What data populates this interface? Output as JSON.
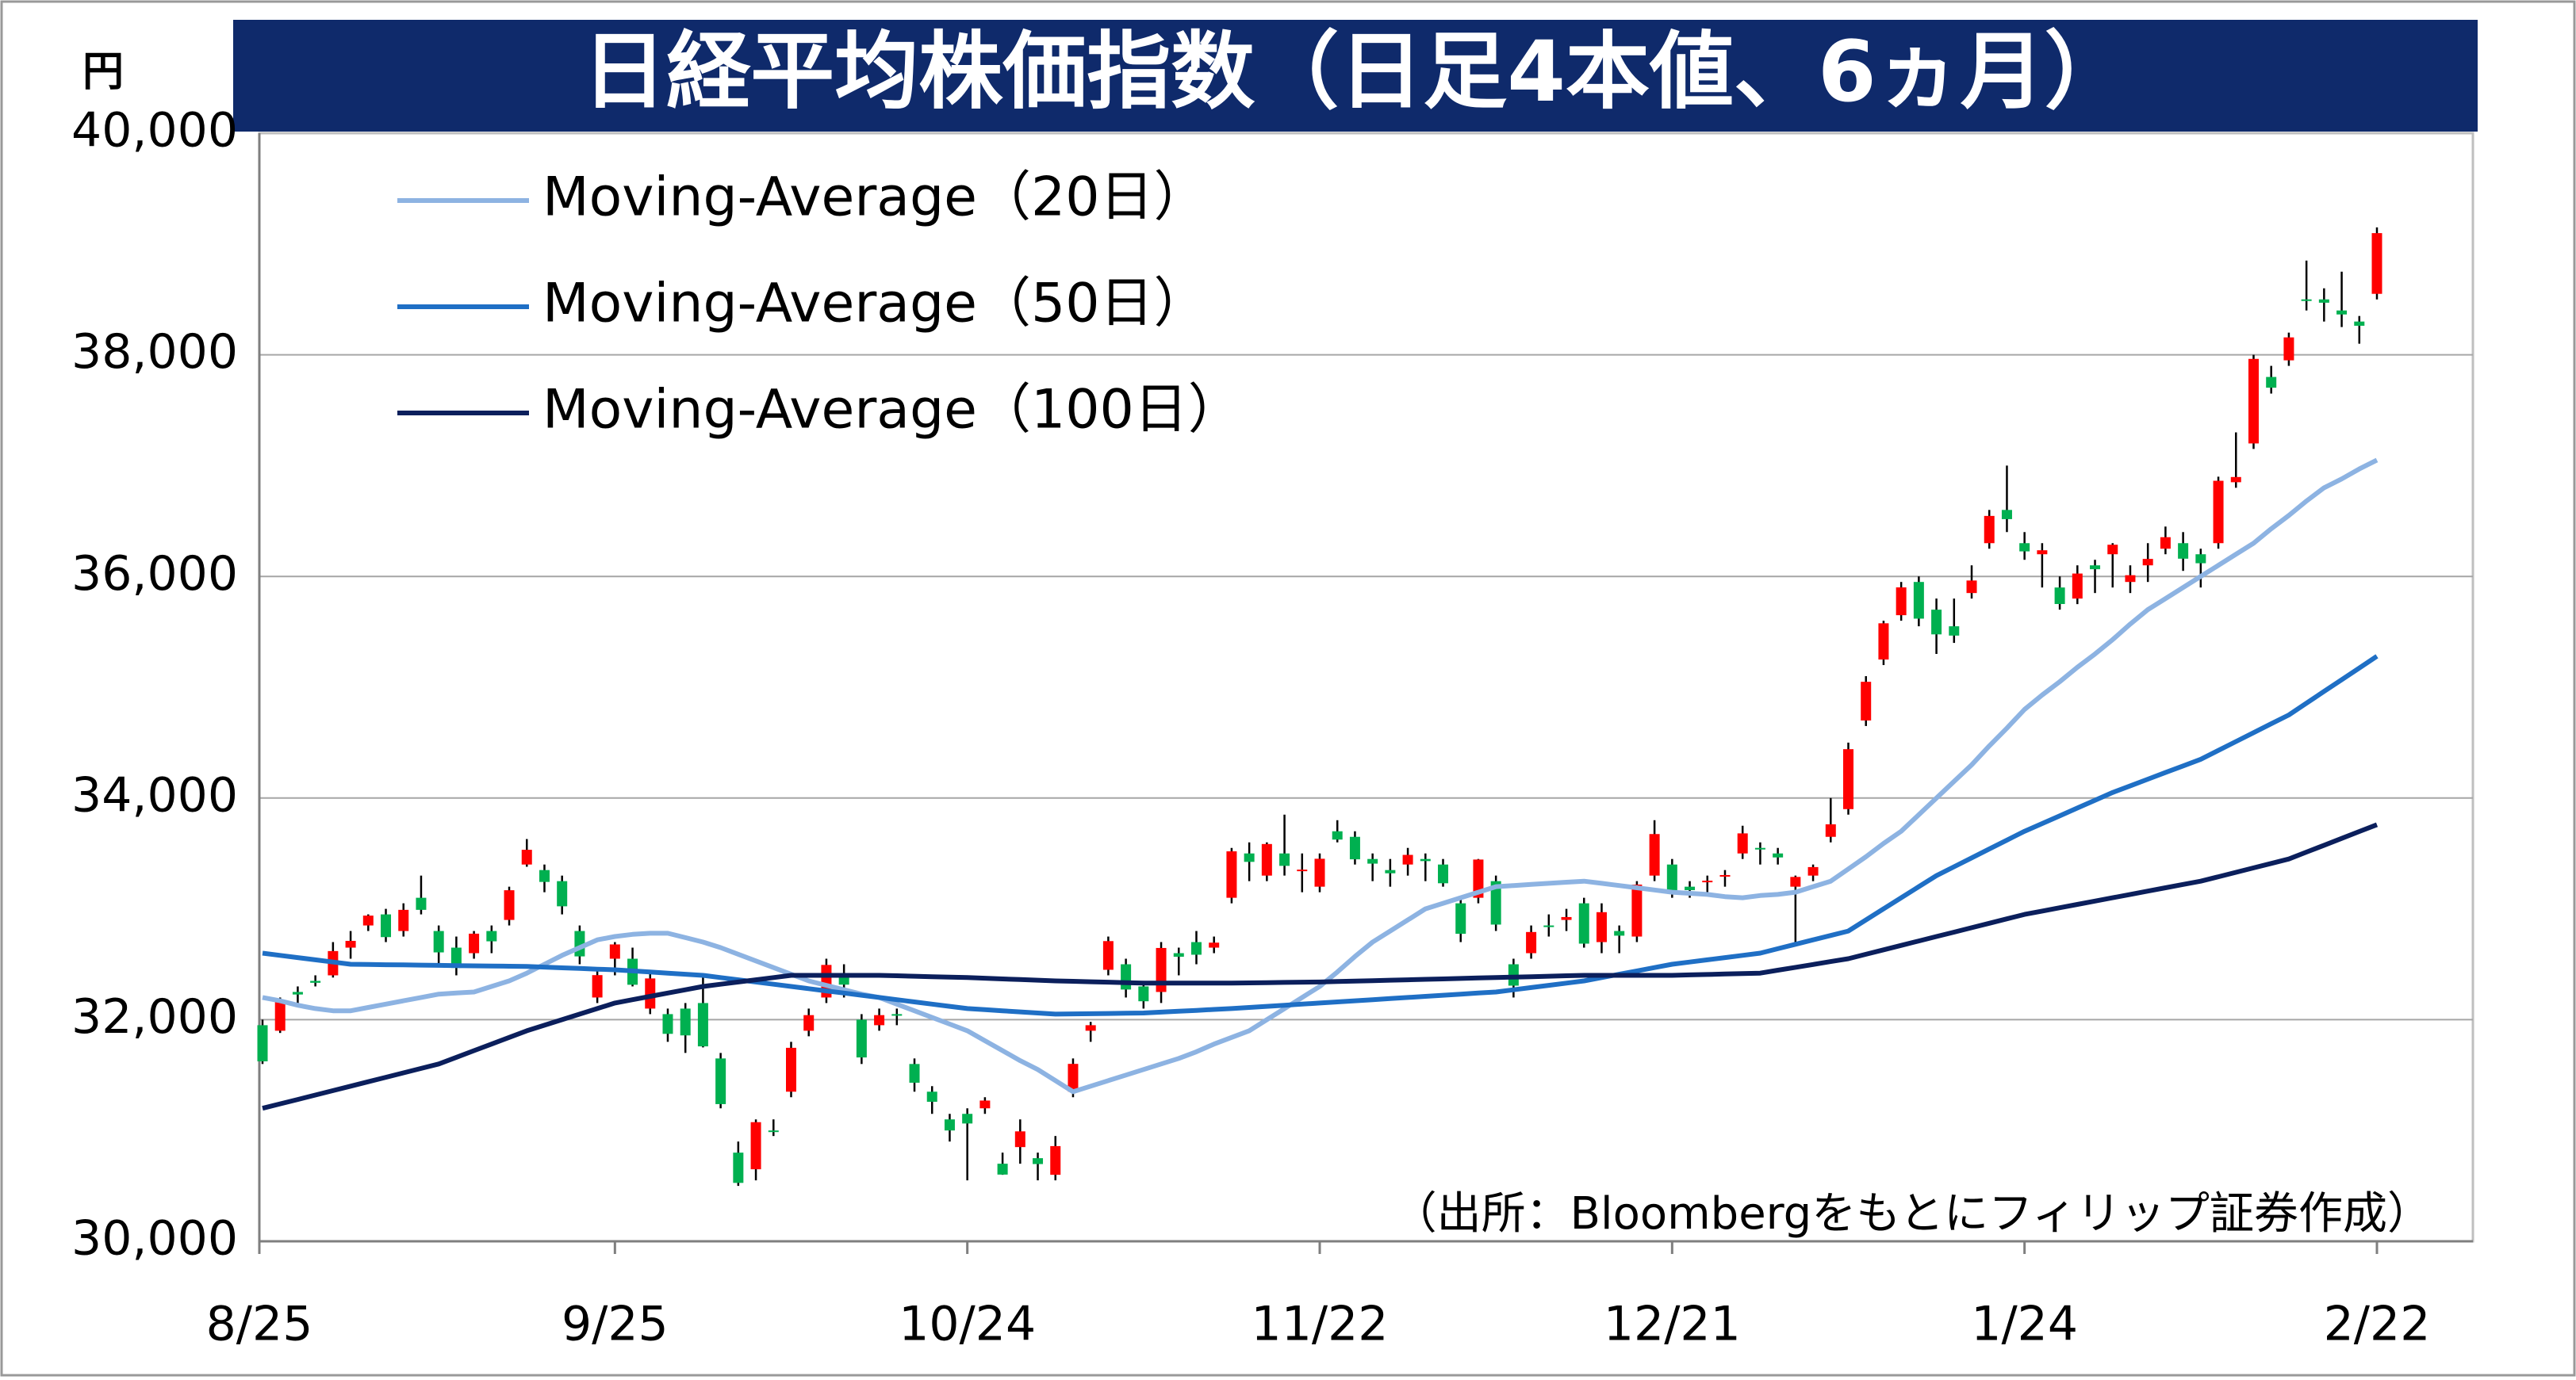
{
  "chart_data": {
    "type": "candlestick",
    "title": "日経平均株価指数（日足4本値、6ヵ月）",
    "y_unit": "円",
    "source": "（出所：Bloombergをもとにフィリップ証券作成）",
    "categories": [
      "8/25",
      null,
      null,
      null,
      null,
      null,
      null,
      null,
      null,
      null,
      null,
      null,
      null,
      null,
      null,
      null,
      null,
      null,
      null,
      null,
      "9/25",
      null,
      null,
      null,
      null,
      null,
      null,
      null,
      null,
      null,
      null,
      null,
      null,
      null,
      null,
      null,
      null,
      null,
      null,
      null,
      "10/24",
      null,
      null,
      null,
      null,
      null,
      null,
      null,
      null,
      null,
      null,
      null,
      null,
      null,
      null,
      null,
      null,
      null,
      null,
      null,
      "11/22",
      null,
      null,
      null,
      null,
      null,
      null,
      null,
      null,
      null,
      null,
      null,
      null,
      null,
      null,
      null,
      null,
      null,
      null,
      null,
      "12/21",
      null,
      null,
      null,
      null,
      null,
      null,
      null,
      null,
      null,
      null,
      null,
      null,
      null,
      null,
      null,
      null,
      null,
      null,
      null,
      "1/24",
      null,
      null,
      null,
      null,
      null,
      null,
      null,
      null,
      null,
      null,
      null,
      null,
      null,
      null,
      null,
      null,
      null,
      null,
      null,
      "2/22"
    ],
    "ohlc": [
      [
        31950,
        32000,
        31600,
        31624
      ],
      [
        31900,
        32200,
        31880,
        32169
      ],
      [
        32250,
        32300,
        32150,
        32227
      ],
      [
        32350,
        32400,
        32300,
        32333
      ],
      [
        32400,
        32700,
        32380,
        32619
      ],
      [
        32650,
        32800,
        32550,
        32711
      ],
      [
        32850,
        32950,
        32800,
        32939
      ],
      [
        32950,
        33000,
        32700,
        32745
      ],
      [
        32800,
        33050,
        32750,
        32991
      ],
      [
        33100,
        33300,
        32950,
        32991
      ],
      [
        32800,
        32850,
        32500,
        32607
      ],
      [
        32650,
        32750,
        32400,
        32467
      ],
      [
        32600,
        32800,
        32550,
        32776
      ],
      [
        32800,
        32850,
        32600,
        32707
      ],
      [
        32900,
        33200,
        32850,
        33168
      ],
      [
        33400,
        33630,
        33380,
        33533
      ],
      [
        33350,
        33400,
        33150,
        33243
      ],
      [
        33250,
        33300,
        32950,
        33023
      ],
      [
        32800,
        32850,
        32500,
        32571
      ],
      [
        32200,
        32450,
        32150,
        32402
      ],
      [
        32550,
        32700,
        32400,
        32679
      ],
      [
        32550,
        32650,
        32300,
        32315
      ],
      [
        32100,
        32450,
        32050,
        32372
      ],
      [
        32050,
        32100,
        31800,
        31872
      ],
      [
        32100,
        32150,
        31700,
        31858
      ],
      [
        32150,
        32400,
        31750,
        31759
      ],
      [
        31650,
        31700,
        31200,
        31238
      ],
      [
        30800,
        30900,
        30500,
        30527
      ],
      [
        30650,
        31100,
        30550,
        31075
      ],
      [
        31000,
        31100,
        30950,
        30995
      ],
      [
        31350,
        31800,
        31300,
        31746
      ],
      [
        31900,
        32100,
        31850,
        32041
      ],
      [
        32200,
        32550,
        32150,
        32494
      ],
      [
        32400,
        32500,
        32200,
        32316
      ],
      [
        32000,
        32050,
        31600,
        31659
      ],
      [
        31950,
        32100,
        31900,
        32041
      ],
      [
        32050,
        32100,
        31950,
        32043
      ],
      [
        31600,
        31650,
        31350,
        31431
      ],
      [
        31350,
        31400,
        31150,
        31259
      ],
      [
        31100,
        31150,
        30900,
        31000
      ],
      [
        31150,
        31200,
        30550,
        31063
      ],
      [
        31200,
        31300,
        31150,
        31270
      ],
      [
        30700,
        30800,
        30600,
        30602
      ],
      [
        30850,
        31100,
        30700,
        30992
      ],
      [
        30750,
        30800,
        30550,
        30697
      ],
      [
        30600,
        30950,
        30550,
        30859
      ],
      [
        31350,
        31650,
        31300,
        31601
      ],
      [
        31900,
        31980,
        31800,
        31950
      ],
      [
        32450,
        32750,
        32400,
        32709
      ],
      [
        32500,
        32550,
        32200,
        32272
      ],
      [
        32300,
        32350,
        32100,
        32166
      ],
      [
        32250,
        32700,
        32150,
        32647
      ],
      [
        32600,
        32650,
        32400,
        32568
      ],
      [
        32700,
        32800,
        32500,
        32586
      ],
      [
        32650,
        32750,
        32600,
        32695
      ],
      [
        33100,
        33550,
        33050,
        33519
      ],
      [
        33500,
        33600,
        33250,
        33424
      ],
      [
        33300,
        33600,
        33250,
        33585
      ],
      [
        33500,
        33850,
        33300,
        33388
      ],
      [
        33350,
        33500,
        33150,
        33354
      ],
      [
        33200,
        33500,
        33150,
        33452
      ],
      [
        33700,
        33800,
        33600,
        33625
      ],
      [
        33650,
        33700,
        33400,
        33447
      ],
      [
        33450,
        33500,
        33250,
        33408
      ],
      [
        33350,
        33450,
        33200,
        33321
      ],
      [
        33400,
        33550,
        33300,
        33487
      ],
      [
        33450,
        33500,
        33250,
        33431
      ],
      [
        33400,
        33450,
        33200,
        33231
      ],
      [
        33050,
        33100,
        32700,
        32775
      ],
      [
        33100,
        33450,
        33050,
        33445
      ],
      [
        33250,
        33300,
        32800,
        32858
      ],
      [
        32500,
        32550,
        32200,
        32307
      ],
      [
        32600,
        32850,
        32550,
        32791
      ],
      [
        32850,
        32950,
        32750,
        32843
      ],
      [
        32900,
        33000,
        32800,
        32926
      ],
      [
        33050,
        33100,
        32650,
        32686
      ],
      [
        32700,
        33050,
        32600,
        32970
      ],
      [
        32800,
        32850,
        32600,
        32758
      ],
      [
        32750,
        33250,
        32700,
        33219
      ],
      [
        33300,
        33800,
        33250,
        33675
      ],
      [
        33400,
        33450,
        33100,
        33141
      ],
      [
        33200,
        33250,
        33100,
        33169
      ],
      [
        33250,
        33300,
        33150,
        33254
      ],
      [
        33300,
        33350,
        33200,
        33305
      ],
      [
        33500,
        33750,
        33450,
        33681
      ],
      [
        33550,
        33600,
        33400,
        33539
      ],
      [
        33500,
        33550,
        33400,
        33464
      ],
      [
        33200,
        33300,
        32700,
        33288
      ],
      [
        33300,
        33400,
        33250,
        33377
      ],
      [
        33650,
        34000,
        33600,
        33763
      ],
      [
        33900,
        34500,
        33850,
        34441
      ],
      [
        34700,
        35100,
        34650,
        35049
      ],
      [
        35250,
        35600,
        35200,
        35577
      ],
      [
        35650,
        35950,
        35600,
        35901
      ],
      [
        35950,
        36000,
        35550,
        35619
      ],
      [
        35700,
        35800,
        35300,
        35477
      ],
      [
        35550,
        35800,
        35400,
        35466
      ],
      [
        35850,
        36100,
        35800,
        35963
      ],
      [
        36300,
        36600,
        36250,
        36546
      ],
      [
        36600,
        37000,
        36400,
        36517
      ],
      [
        36300,
        36400,
        36150,
        36226
      ],
      [
        36200,
        36300,
        35900,
        36236
      ],
      [
        35900,
        36000,
        35700,
        35751
      ],
      [
        35800,
        36100,
        35750,
        36026
      ],
      [
        36100,
        36150,
        35850,
        36065
      ],
      [
        36200,
        36300,
        35900,
        36286
      ],
      [
        35950,
        36100,
        35850,
        36011
      ],
      [
        36100,
        36300,
        35950,
        36158
      ],
      [
        36250,
        36450,
        36200,
        36354
      ],
      [
        36300,
        36400,
        36050,
        36160
      ],
      [
        36200,
        36250,
        35900,
        36119
      ],
      [
        36300,
        36900,
        36250,
        36863
      ],
      [
        36850,
        37300,
        36800,
        36897
      ],
      [
        37200,
        38000,
        37150,
        37963
      ],
      [
        37800,
        37900,
        37650,
        37703
      ],
      [
        37950,
        38200,
        37900,
        38157
      ],
      [
        38500,
        38850,
        38400,
        38487
      ],
      [
        38500,
        38600,
        38300,
        38470
      ],
      [
        38400,
        38750,
        38250,
        38364
      ],
      [
        38300,
        38350,
        38100,
        38262
      ],
      [
        38550,
        39150,
        38500,
        39098
      ]
    ],
    "up_color": "#ff0000",
    "down_color": "#00b050",
    "series": [
      {
        "name": "Moving-Average（20日）",
        "color": "#8db3e2",
        "values": [
          32200,
          32170,
          32130,
          32100,
          32080,
          32080,
          32110,
          32140,
          32170,
          32200,
          32230,
          32240,
          32250,
          32300,
          32350,
          32420,
          32500,
          32580,
          32650,
          32720,
          32750,
          32770,
          32780,
          32780,
          32740,
          32700,
          32650,
          32590,
          32530,
          32470,
          32410,
          32350,
          32310,
          32270,
          32230,
          32200,
          32140,
          32080,
          32020,
          31960,
          31900,
          31810,
          31720,
          31630,
          31550,
          31450,
          31350,
          31400,
          31450,
          31500,
          31550,
          31600,
          31650,
          31710,
          31780,
          31840,
          31900,
          32000,
          32100,
          32200,
          32300,
          32430,
          32570,
          32700,
          32800,
          32900,
          33000,
          33050,
          33100,
          33150,
          33200,
          33210,
          33220,
          33230,
          33240,
          33250,
          33230,
          33210,
          33190,
          33170,
          33150,
          33140,
          33130,
          33110,
          33100,
          33120,
          33130,
          33150,
          33200,
          33250,
          33360,
          33470,
          33590,
          33700,
          33850,
          34000,
          34150,
          34300,
          34470,
          34630,
          34800,
          34930,
          35050,
          35180,
          35300,
          35430,
          35570,
          35700,
          35800,
          35900,
          36000,
          36100,
          36200,
          36300,
          36430,
          36550,
          36680,
          36800,
          36880,
          36970,
          37050
        ]
      },
      {
        "name": "Moving-Average（50日）",
        "color": "#1f6fc5",
        "values": [
          32600,
          32580,
          32560,
          32540,
          32520,
          32500,
          32498,
          32496,
          32494,
          32492,
          32490,
          32488,
          32486,
          32484,
          32482,
          32480,
          32474,
          32468,
          32462,
          32456,
          32450,
          32440,
          32430,
          32420,
          32410,
          32400,
          32380,
          32360,
          32340,
          32320,
          32300,
          32280,
          32260,
          32240,
          32220,
          32200,
          32180,
          32160,
          32140,
          32120,
          32100,
          32090,
          32080,
          32070,
          32060,
          32050,
          32052,
          32054,
          32056,
          32058,
          32060,
          32068,
          32076,
          32084,
          32092,
          32100,
          32110,
          32120,
          32130,
          32140,
          32150,
          32160,
          32170,
          32180,
          32190,
          32200,
          32210,
          32220,
          32230,
          32240,
          32250,
          32270,
          32290,
          32310,
          32330,
          32350,
          32380,
          32410,
          32440,
          32470,
          32500,
          32520,
          32540,
          32560,
          32580,
          32600,
          32640,
          32680,
          32720,
          32760,
          32800,
          32900,
          33000,
          33100,
          33200,
          33300,
          33380,
          33460,
          33540,
          33620,
          33700,
          33770,
          33840,
          33910,
          33980,
          34050,
          34110,
          34170,
          34230,
          34290,
          34350,
          34430,
          34510,
          34590,
          34670,
          34750,
          34856,
          34962,
          35068,
          35174,
          35280
        ]
      },
      {
        "name": "Moving-Average（100日）",
        "color": "#0b1f5c",
        "values": [
          31200,
          31240,
          31280,
          31320,
          31360,
          31400,
          31440,
          31480,
          31520,
          31560,
          31600,
          31660,
          31720,
          31780,
          31840,
          31900,
          31950,
          32000,
          32050,
          32100,
          32150,
          32180,
          32210,
          32240,
          32270,
          32300,
          32320,
          32340,
          32360,
          32380,
          32400,
          32400,
          32400,
          32400,
          32400,
          32400,
          32396,
          32392,
          32388,
          32384,
          32380,
          32374,
          32368,
          32362,
          32356,
          32350,
          32346,
          32342,
          32338,
          32334,
          32330,
          32330,
          32330,
          32330,
          32330,
          32330,
          32332,
          32334,
          32336,
          32338,
          32340,
          32344,
          32348,
          32352,
          32356,
          32360,
          32364,
          32368,
          32372,
          32376,
          32380,
          32384,
          32388,
          32392,
          32396,
          32400,
          32400,
          32400,
          32400,
          32400,
          32400,
          32404,
          32408,
          32412,
          32416,
          32420,
          32446,
          32472,
          32498,
          32524,
          32550,
          32590,
          32630,
          32670,
          32710,
          32750,
          32790,
          32830,
          32870,
          32910,
          32950,
          32980,
          33010,
          33040,
          33070,
          33100,
          33130,
          33160,
          33190,
          33220,
          33250,
          33290,
          33330,
          33370,
          33410,
          33450,
          33512,
          33574,
          33636,
          33698,
          33760
        ]
      }
    ],
    "ylim": [
      30000,
      40000
    ],
    "yticks": [
      {
        "value": 30000,
        "label": "30,000"
      },
      {
        "value": 32000,
        "label": "32,000"
      },
      {
        "value": 34000,
        "label": "34,000"
      },
      {
        "value": 36000,
        "label": "36,000"
      },
      {
        "value": 38000,
        "label": "38,000"
      },
      {
        "value": 40000,
        "label": "40,000"
      }
    ],
    "grid": true,
    "legend": "upper left"
  }
}
